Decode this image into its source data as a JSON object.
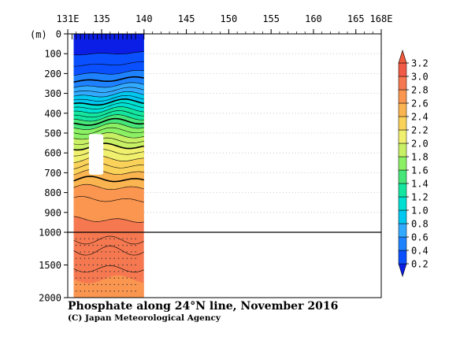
{
  "chart_data": {
    "type": "heatmap",
    "title": "Phosphate along 24°N line, November 2016",
    "credit": "(C) Japan Meteorological Agency",
    "ylabel": "(m)",
    "xlim": [
      131,
      168
    ],
    "x_ticks": [
      {
        "value": 131,
        "label": "131E"
      },
      {
        "value": 135,
        "label": "135"
      },
      {
        "value": 140,
        "label": "140"
      },
      {
        "value": 145,
        "label": "145"
      },
      {
        "value": 150,
        "label": "150"
      },
      {
        "value": 155,
        "label": "155"
      },
      {
        "value": 160,
        "label": "160"
      },
      {
        "value": 165,
        "label": "165"
      },
      {
        "value": 168,
        "label": "168E"
      }
    ],
    "y_upper": {
      "range": [
        0,
        1000
      ],
      "ticks": [
        0,
        100,
        200,
        300,
        400,
        500,
        600,
        700,
        800,
        900,
        1000
      ]
    },
    "y_lower": {
      "range": [
        1000,
        2000
      ],
      "ticks": [
        1500,
        2000
      ]
    },
    "y_reference_line": 1000,
    "station_longitudes": [
      131.5,
      132,
      132.5,
      133,
      133.5,
      134,
      134.5,
      135,
      135.5,
      136,
      136.5,
      137,
      137.5,
      138,
      138.5,
      139,
      140
    ],
    "data_lon_range": [
      131.7,
      140
    ],
    "no_data_region": {
      "lon": [
        133.5,
        135.2
      ],
      "depth": [
        505,
        710
      ]
    },
    "contour_interval": 0.1,
    "contour_depths_m": [
      {
        "value": 0.2,
        "depth": 100
      },
      {
        "value": 0.3,
        "depth": 155
      },
      {
        "value": 0.4,
        "depth": 200
      },
      {
        "value": 0.5,
        "depth": 235
      },
      {
        "value": 0.6,
        "depth": 265
      },
      {
        "value": 0.7,
        "depth": 290
      },
      {
        "value": 0.8,
        "depth": 312
      },
      {
        "value": 0.9,
        "depth": 333
      },
      {
        "value": 1.0,
        "depth": 352
      },
      {
        "value": 1.1,
        "depth": 372
      },
      {
        "value": 1.2,
        "depth": 392
      },
      {
        "value": 1.3,
        "depth": 412
      },
      {
        "value": 1.4,
        "depth": 432
      },
      {
        "value": 1.5,
        "depth": 452
      },
      {
        "value": 1.6,
        "depth": 474
      },
      {
        "value": 1.7,
        "depth": 497
      },
      {
        "value": 1.8,
        "depth": 522
      },
      {
        "value": 1.9,
        "depth": 548
      },
      {
        "value": 2.0,
        "depth": 575
      },
      {
        "value": 2.1,
        "depth": 605
      },
      {
        "value": 2.2,
        "depth": 638
      },
      {
        "value": 2.3,
        "depth": 672
      },
      {
        "value": 2.4,
        "depth": 705
      },
      {
        "value": 2.5,
        "depth": 740
      },
      {
        "value": 2.6,
        "depth": 780
      },
      {
        "value": 2.7,
        "depth": 840
      },
      {
        "value": 2.8,
        "depth": 940
      },
      {
        "value": 2.9,
        "depth": 1280
      }
    ],
    "colorbar": {
      "levels": [
        "0.2",
        "0.4",
        "0.6",
        "0.8",
        "1.0",
        "1.2",
        "1.4",
        "1.6",
        "1.8",
        "2.0",
        "2.2",
        "2.4",
        "2.6",
        "2.8",
        "3.0",
        "3.2"
      ],
      "colors": [
        "#0a1ee6",
        "#0a50ff",
        "#1e82ff",
        "#32aaff",
        "#00c8f0",
        "#00e0d2",
        "#14e6a0",
        "#46e678",
        "#8cf064",
        "#c8f064",
        "#f0f06e",
        "#fad25a",
        "#fab450",
        "#fa9650",
        "#f57850",
        "#f05a46",
        "#f05a3c"
      ]
    }
  }
}
